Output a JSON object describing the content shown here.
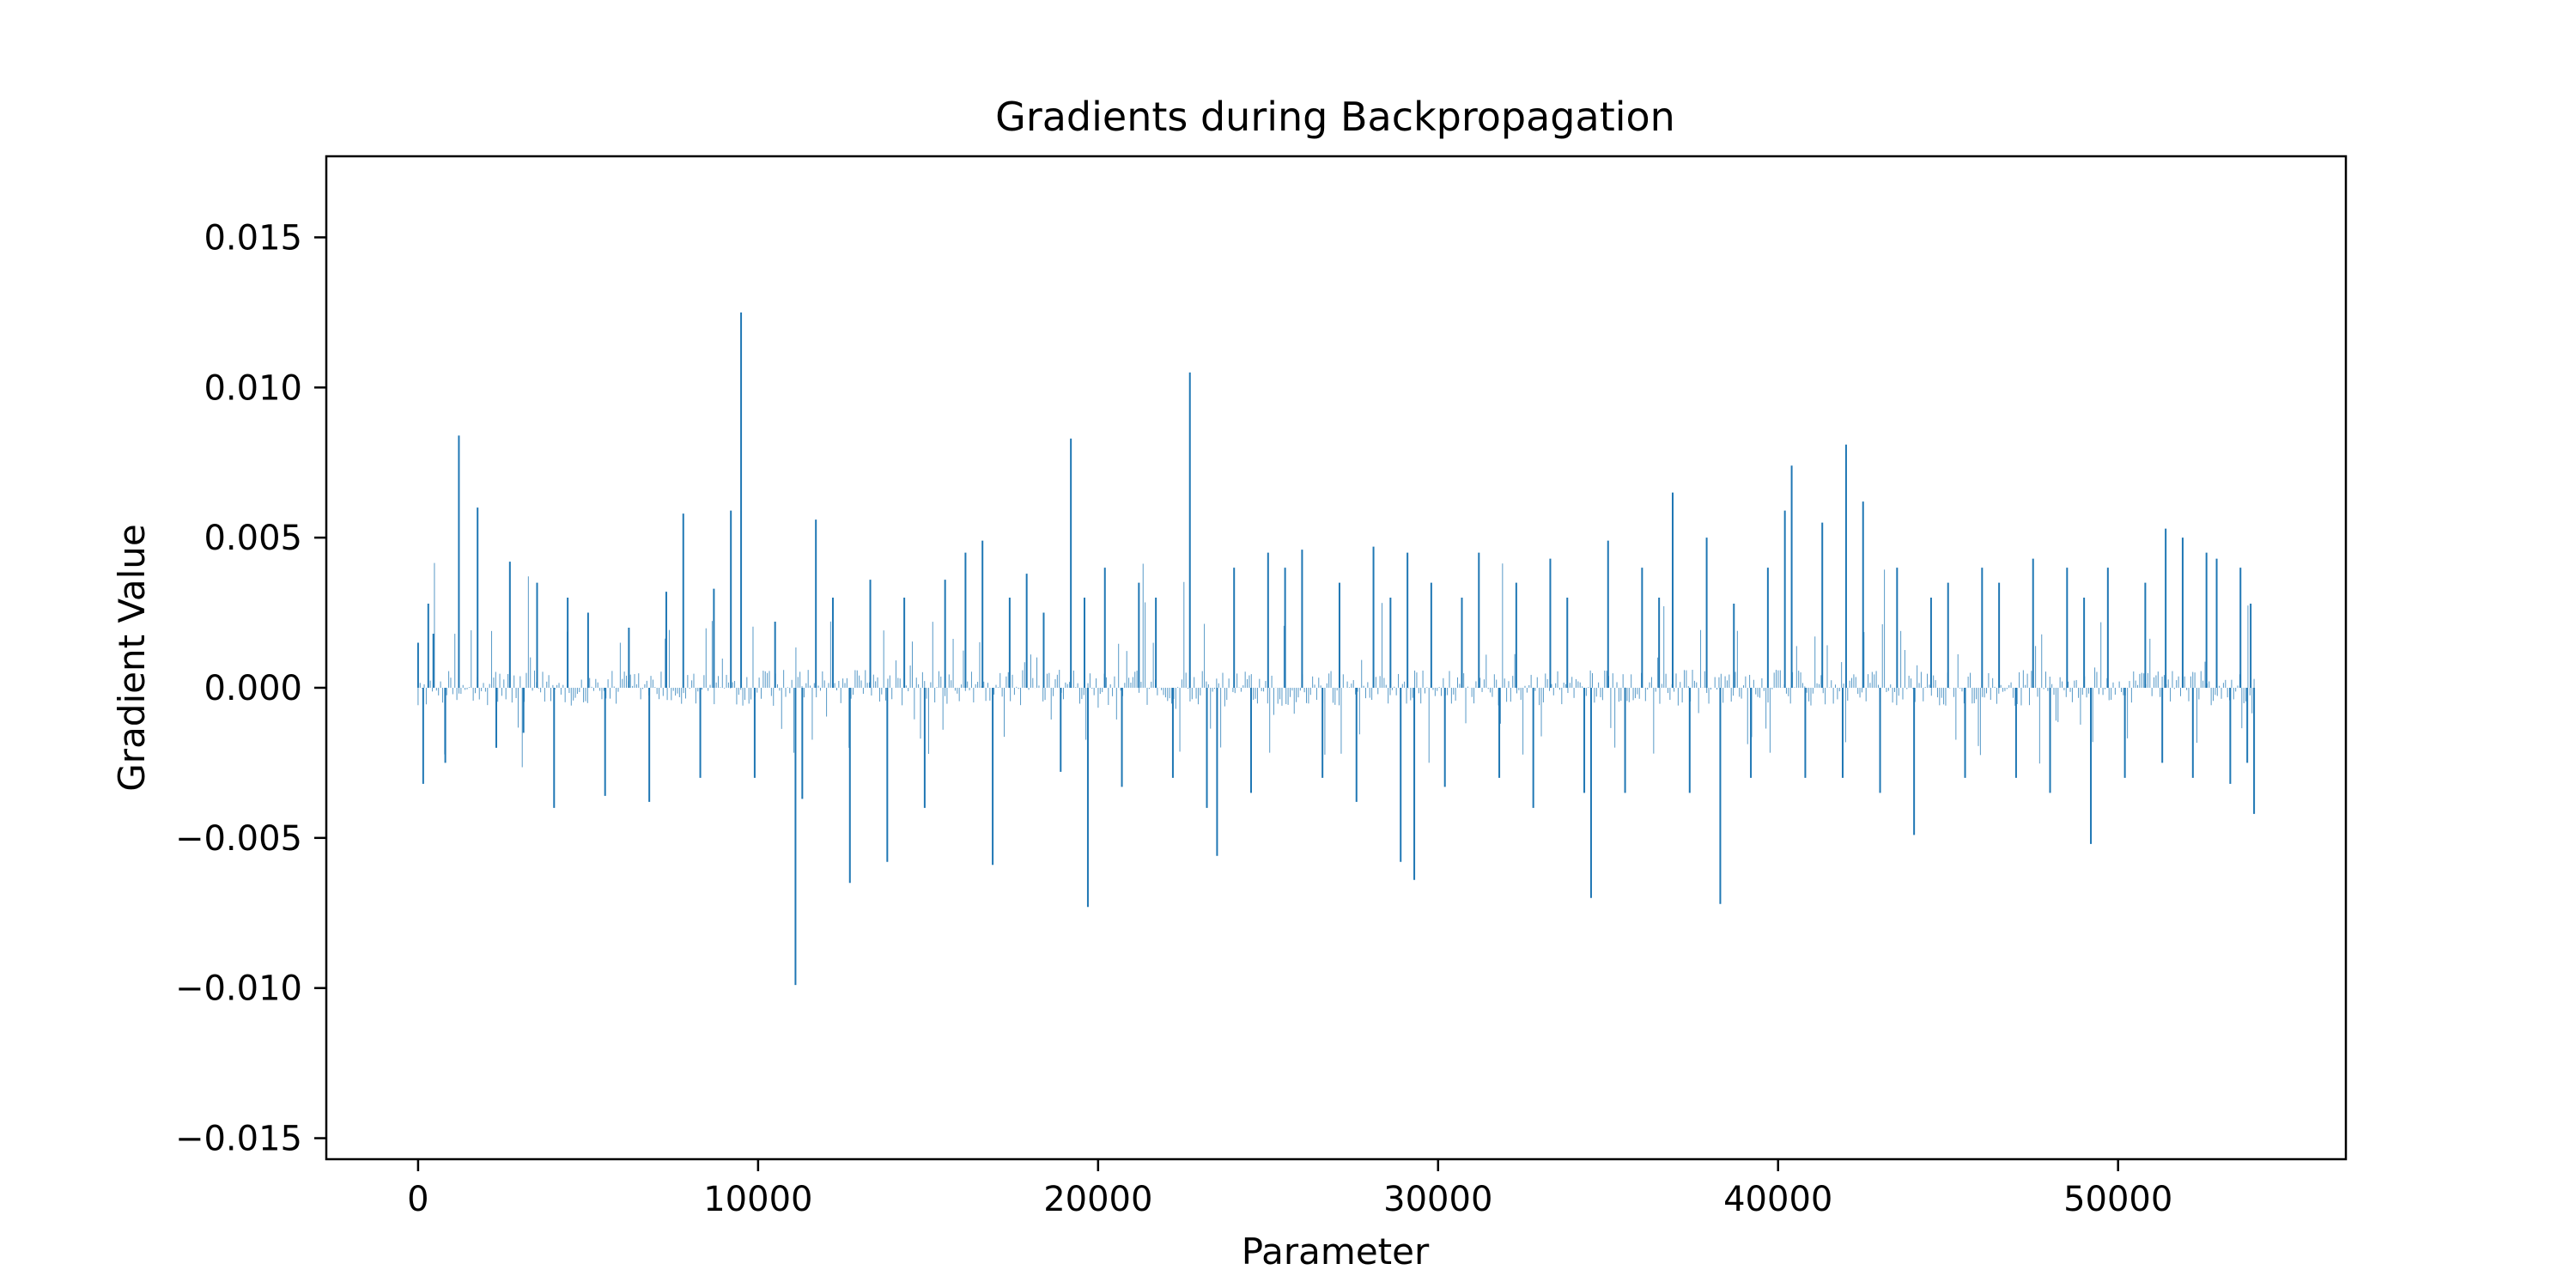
{
  "chart_data": {
    "type": "bar",
    "title": "Gradients during Backpropagation",
    "xlabel": "Parameter",
    "ylabel": "Gradient Value",
    "xlim": [
      -2700,
      56700
    ],
    "ylim": [
      -0.0157,
      0.0177
    ],
    "xticks": [
      {
        "value": 0,
        "label": "0"
      },
      {
        "value": 10000,
        "label": "10000"
      },
      {
        "value": 20000,
        "label": "20000"
      },
      {
        "value": 30000,
        "label": "30000"
      },
      {
        "value": 40000,
        "label": "40000"
      },
      {
        "value": 50000,
        "label": "50000"
      }
    ],
    "yticks": [
      {
        "value": -0.015,
        "label": "−0.015"
      },
      {
        "value": -0.01,
        "label": "−0.010"
      },
      {
        "value": -0.005,
        "label": "−0.005"
      },
      {
        "value": 0.0,
        "label": "0.000"
      },
      {
        "value": 0.005,
        "label": "0.005"
      },
      {
        "value": 0.01,
        "label": "0.010"
      },
      {
        "value": 0.015,
        "label": "0.015"
      }
    ],
    "grid": false,
    "color": "#1f77b4",
    "x_range": [
      0,
      54000
    ],
    "series": [
      {
        "x": [
          0,
          150,
          300,
          450,
          800,
          1200,
          1750,
          2300,
          2700,
          3100,
          3500,
          4000,
          4400,
          5000,
          5500,
          6200,
          6800,
          7300,
          7800,
          8300,
          8700,
          9200,
          9500,
          9900,
          10500,
          11100,
          11300,
          11700,
          12200,
          12700,
          13300,
          13800,
          14300,
          14900,
          15500,
          16100,
          16600,
          16900,
          17400,
          17900,
          18400,
          18900,
          19200,
          19600,
          19700,
          20200,
          20700,
          21200,
          21700,
          22200,
          22700,
          23200,
          23500,
          24000,
          24500,
          25000,
          25500,
          26000,
          26600,
          27100,
          27600,
          28100,
          28600,
          28900,
          29100,
          29300,
          29800,
          30200,
          30700,
          31200,
          31800,
          32300,
          32800,
          33300,
          33800,
          34300,
          34500,
          35000,
          35500,
          36000,
          36500,
          36900,
          37400,
          37900,
          38300,
          38700,
          39200,
          39700,
          40200,
          40400,
          40800,
          41300,
          41900,
          42000,
          42500,
          43000,
          43500,
          44000,
          44500,
          45000,
          45500,
          46000,
          46500,
          47000,
          47500,
          48000,
          48500,
          49000,
          49200,
          49700,
          50200,
          50800,
          51300,
          51400,
          51900,
          52200,
          52600,
          52900,
          53300,
          53600,
          53800,
          53900,
          54000
        ],
        "values": [
          0.0015,
          -0.0032,
          0.0028,
          0.0018,
          -0.0025,
          0.0084,
          0.006,
          -0.002,
          0.0042,
          -0.0015,
          0.0035,
          -0.004,
          0.003,
          0.0025,
          -0.0036,
          0.002,
          -0.0038,
          0.0032,
          0.0058,
          -0.003,
          0.0033,
          0.0059,
          0.0125,
          -0.003,
          0.0022,
          -0.0099,
          -0.0037,
          0.0056,
          0.003,
          -0.0065,
          0.0036,
          -0.0058,
          0.003,
          -0.004,
          0.0036,
          0.0045,
          0.0049,
          -0.0059,
          0.003,
          0.0038,
          0.0025,
          -0.0028,
          0.0083,
          0.003,
          -0.0073,
          0.004,
          -0.0033,
          0.0035,
          0.003,
          -0.003,
          0.0105,
          -0.004,
          -0.0056,
          0.004,
          -0.0035,
          0.0045,
          0.004,
          0.0046,
          -0.003,
          0.0035,
          -0.0038,
          0.0047,
          0.003,
          -0.0058,
          0.0045,
          -0.0064,
          0.0035,
          -0.0033,
          0.003,
          0.0045,
          -0.003,
          0.0035,
          -0.004,
          0.0043,
          0.003,
          -0.0035,
          -0.007,
          0.0049,
          -0.0035,
          0.004,
          0.003,
          0.0065,
          -0.0035,
          0.005,
          -0.0072,
          0.0028,
          -0.003,
          0.004,
          0.0059,
          0.0074,
          -0.003,
          0.0055,
          -0.003,
          0.0081,
          0.0062,
          -0.0035,
          0.004,
          -0.0049,
          0.003,
          0.0035,
          -0.003,
          0.004,
          0.0035,
          -0.003,
          0.0043,
          -0.0035,
          0.004,
          0.003,
          -0.0052,
          0.004,
          -0.003,
          0.0035,
          -0.0025,
          0.0053,
          0.005,
          -0.003,
          0.0045,
          0.0043,
          -0.0032,
          0.004,
          -0.0025,
          0.0028,
          -0.0042
        ]
      }
    ]
  }
}
